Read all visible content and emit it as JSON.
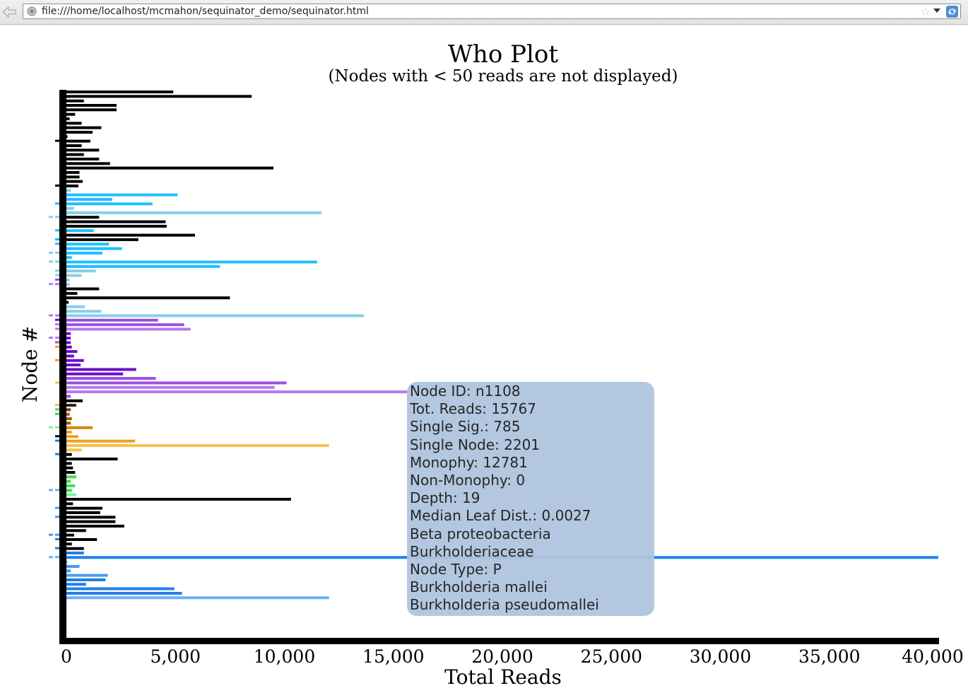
{
  "browser": {
    "url": "file:///home/localhost/mcmahon/sequinator_demo/sequinator.html"
  },
  "icons": {
    "back": "back-arrow-icon",
    "site": "globe-icon",
    "bookmark": "star-icon",
    "history": "chevron-down-icon",
    "reload": "reload-icon"
  },
  "chart_data": {
    "type": "bar",
    "orientation": "horizontal",
    "title": "Who Plot",
    "subtitle": "(Nodes with < 50 reads are not displayed)",
    "xlabel": "Total Reads",
    "ylabel": "Node #",
    "xlim": [
      0,
      40000
    ],
    "xticks": [
      "0",
      "5,000",
      "10,000",
      "15,000",
      "20,000",
      "25,000",
      "30,000",
      "35,000",
      "40,000"
    ],
    "grid": false,
    "legend": "none",
    "values": [
      4900,
      8500,
      800,
      2300,
      2300,
      400,
      150,
      700,
      1600,
      1200,
      50,
      1100,
      700,
      1500,
      800,
      1500,
      2000,
      9500,
      600,
      600,
      750,
      550,
      200,
      5100,
      2100,
      3950,
      350,
      11700,
      1500,
      4550,
      4600,
      1250,
      5900,
      3300,
      1950,
      2550,
      1650,
      250,
      11500,
      7050,
      1350,
      700,
      150,
      150,
      1500,
      500,
      7500,
      100,
      850,
      1600,
      13650,
      4200,
      5400,
      5700,
      200,
      200,
      200,
      250,
      500,
      350,
      800,
      650,
      3200,
      2600,
      4100,
      10100,
      9550,
      15767,
      200,
      750,
      450,
      200,
      150,
      250,
      200,
      1200,
      250,
      550,
      3150,
      12050,
      700,
      250,
      2350,
      250,
      300,
      400,
      450,
      200,
      400,
      250,
      450,
      10300,
      300,
      1650,
      1550,
      2250,
      2250,
      2650,
      900,
      350,
      1400,
      250,
      800,
      800,
      40000,
      50,
      600,
      200,
      1900,
      1800,
      900,
      4950,
      5300,
      12050
    ],
    "colors": [
      "#000000",
      "#000000",
      "#000000",
      "#000000",
      "#000000",
      "#000000",
      "#000000",
      "#000000",
      "#000000",
      "#000000",
      "#000000",
      "#000000",
      "#000000",
      "#000000",
      "#000000",
      "#000000",
      "#000000",
      "#000000",
      "#000000",
      "#000000",
      "#000000",
      "#000000",
      "#87ceeb",
      "#1fbfff",
      "#1fbfff",
      "#1fbfff",
      "#87ceeb",
      "#87ceeb",
      "#000000",
      "#000000",
      "#000000",
      "#1fbfff",
      "#000000",
      "#000000",
      "#1fbfff",
      "#1fbfff",
      "#1fbfff",
      "#1fbfff",
      "#1fbfff",
      "#1fbfff",
      "#87ceeb",
      "#87ceeb",
      "#87ceeb",
      "#87ceeb",
      "#000000",
      "#000000",
      "#000000",
      "#000000",
      "#87ceeb",
      "#87ceeb",
      "#87ceeb",
      "#9b4fe0",
      "#9b4fe0",
      "#b479f0",
      "#6a0dcc",
      "#6a0dcc",
      "#6a0dcc",
      "#6a0dcc",
      "#6a0dcc",
      "#6a0dcc",
      "#6a0dcc",
      "#6a0dcc",
      "#6a0dcc",
      "#6a0dcc",
      "#9b4fe0",
      "#9b4fe0",
      "#b479f0",
      "#b479f0",
      "#9b4fe0",
      "#000000",
      "#3b1a00",
      "#7a3b00",
      "#a05a00",
      "#a05a00",
      "#a05a00",
      "#d88500",
      "#eea020",
      "#eea020",
      "#eea020",
      "#f8c050",
      "#f8c050",
      "#000000",
      "#000000",
      "#000000",
      "#000000",
      "#000000",
      "#3ddc60",
      "#3ddc60",
      "#3ddc60",
      "#3ddc60",
      "#7af598",
      "#000000",
      "#000000",
      "#000000",
      "#000000",
      "#000000",
      "#000000",
      "#000000",
      "#000000",
      "#000000",
      "#000000",
      "#000000",
      "#000000",
      "#1f7fe8",
      "#1f7fe8",
      "#6cb0f4",
      "#4a9af0",
      "#4a9af0",
      "#4a9af0",
      "#1f7fe8",
      "#1f7fe8",
      "#1f7fe8",
      "#1f7fe8",
      "#6cb0f4"
    ],
    "left_marks": [
      [
        "#000000",
        1
      ],
      [
        "#000000",
        1
      ],
      [
        "#1fbfff",
        1
      ],
      [
        "#87ceeb",
        2
      ],
      [
        "#1fbfff",
        1
      ],
      [
        "#000000",
        1
      ],
      [
        "#1fbfff",
        1
      ],
      [
        "#1fbfff",
        1
      ],
      [
        "#87ceeb",
        2
      ],
      [
        "#87ceeb",
        2
      ],
      [
        "#87ceeb",
        1
      ],
      [
        "#87ceeb",
        1
      ],
      [
        "#9b4fe0",
        1
      ],
      [
        "#b479f0",
        2
      ],
      [
        "#b479f0",
        2
      ],
      [
        "#6a0dcc",
        1
      ],
      [
        "#b479f0",
        1
      ],
      [
        "#b479f0",
        1
      ],
      [
        "#b479f0",
        2
      ],
      [
        "#9b4fe0",
        1
      ],
      [
        "#eea020",
        1
      ],
      [
        "#eea020",
        1
      ],
      [
        "#f8c050",
        1
      ],
      [
        "#f8c050",
        1
      ],
      [
        "#3ddc60",
        1
      ],
      [
        "#3ddc60",
        1
      ],
      [
        "#7af598",
        2
      ],
      [
        "#000000",
        1
      ],
      [
        "#1f7fe8",
        1
      ],
      [
        "#1f7fe8",
        1
      ],
      [
        "#6cb0f4",
        2
      ],
      [
        "#4a9af0",
        1
      ],
      [
        "#4a9af0",
        1
      ],
      [
        "#4a9af0",
        2
      ],
      [
        "#1f7fe8",
        1
      ],
      [
        "#1f7fe8",
        1
      ],
      [
        "#6cb0f4",
        2
      ]
    ]
  },
  "tooltip": {
    "lines": [
      "Node ID: n1108",
      "Tot. Reads: 15767",
      "Single Sig.: 785",
      "Single Node: 2201",
      "Monophy: 12781",
      "Non-Monophy: 0",
      "Depth: 19",
      "Median Leaf Dist.: 0.0027",
      "Beta proteobacteria",
      "Burkholderiaceae",
      "Node Type: P",
      "Burkholderia mallei",
      "Burkholderia pseudomallei"
    ]
  }
}
